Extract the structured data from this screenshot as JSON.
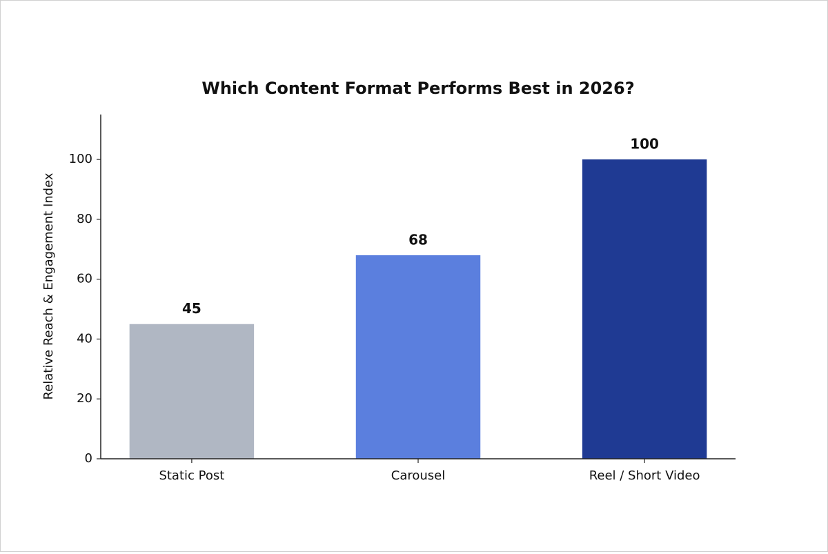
{
  "chart_data": {
    "type": "bar",
    "title": "Which Content Format Performs Best in 2026?",
    "y_label": "Relative Reach & Engagement Index",
    "categories": [
      "Static Post",
      "Carousel",
      "Reel / Short Video"
    ],
    "values": [
      45,
      68,
      100
    ],
    "colors": [
      "#b0b7c3",
      "#5b7fde",
      "#1f3a93"
    ],
    "ylim": [
      0,
      115
    ],
    "yticks": [
      0,
      20,
      40,
      60,
      80,
      100
    ],
    "grid": false
  }
}
